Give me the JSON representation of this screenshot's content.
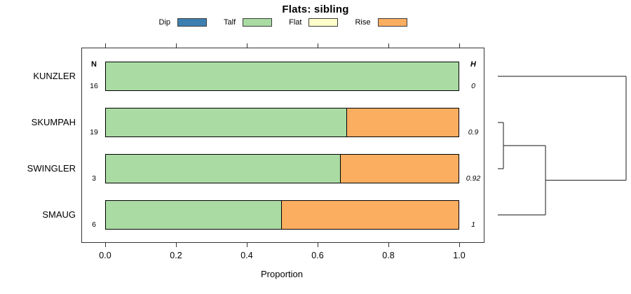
{
  "chart_data": {
    "type": "bar",
    "stacked": true,
    "orientation": "horizontal",
    "title": "Flats: sibling",
    "xlabel": "Proportion",
    "xlim": [
      0,
      1
    ],
    "x_ticks": [
      "0.0",
      "0.2",
      "0.4",
      "0.6",
      "0.8",
      "1.0"
    ],
    "categories": [
      "KUNZLER",
      "SKUMPAH",
      "SWINGLER",
      "SMAUG"
    ],
    "n_column": {
      "header": "N",
      "values": [
        "16",
        "19",
        "3",
        "6"
      ]
    },
    "h_column": {
      "header": "H",
      "values": [
        "0",
        "0.9",
        "0.92",
        "1"
      ]
    },
    "series": [
      {
        "name": "Dip",
        "color": "#3E7FB1",
        "values": [
          0,
          0,
          0,
          0
        ]
      },
      {
        "name": "Talf",
        "color": "#A9DBA3",
        "values": [
          1,
          0.684,
          0.667,
          0.5
        ]
      },
      {
        "name": "Flat",
        "color": "#FFFFCC",
        "values": [
          0,
          0,
          0,
          0
        ]
      },
      {
        "name": "Rise",
        "color": "#FBAD60",
        "values": [
          0,
          0.316,
          0.333,
          0.5
        ]
      }
    ],
    "legend_position": "top",
    "grid": false
  },
  "dendrogram": {
    "leaves": [
      "KUNZLER",
      "SKUMPAH",
      "SWINGLER",
      "SMAUG"
    ],
    "merges": [
      {
        "id": "m1",
        "children": [
          "SKUMPAH",
          "SWINGLER"
        ],
        "height": 0.044
      },
      {
        "id": "m2",
        "children": [
          "m1",
          "SMAUG"
        ],
        "height": 0.372
      },
      {
        "id": "m3",
        "children": [
          "KUNZLER",
          "m2"
        ],
        "height": 1.0
      }
    ],
    "line_color": "#404040"
  }
}
